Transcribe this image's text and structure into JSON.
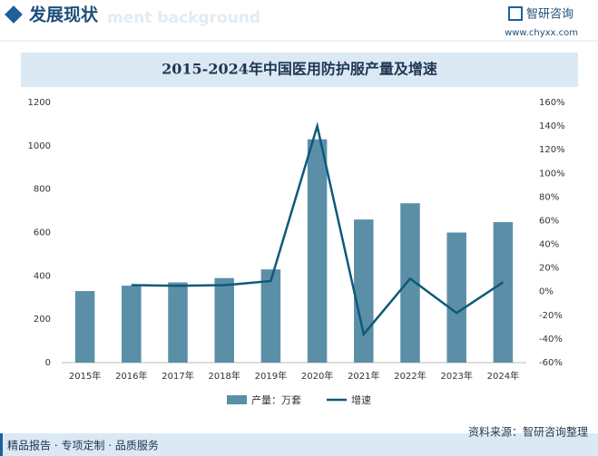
{
  "header": {
    "title": "发展现状",
    "watermark": "ment background",
    "brand": "智研咨询",
    "url": "www.chyxx.com"
  },
  "chart_data": {
    "type": "bar_line",
    "title": "2015-2024年中国医用防护服产量及增速",
    "categories": [
      "2015年",
      "2016年",
      "2017年",
      "2018年",
      "2019年",
      "2020年",
      "2021年",
      "2022年",
      "2023年",
      "2024年"
    ],
    "series": [
      {
        "name": "产量：万套",
        "type": "bar",
        "color": "#5b8fa8",
        "values": [
          330,
          355,
          370,
          390,
          430,
          1030,
          660,
          735,
          600,
          648
        ]
      },
      {
        "name": "增速",
        "type": "line",
        "axis": "y2",
        "color": "#0e5a7a",
        "values": [
          null,
          5.5,
          5,
          5.5,
          9,
          140,
          -36,
          11,
          -18,
          8
        ]
      }
    ],
    "ylim": [
      0,
      1200
    ],
    "yticks": [
      0,
      200,
      400,
      600,
      800,
      1000,
      1200
    ],
    "y2lim": [
      -60,
      160
    ],
    "y2ticks": [
      {
        "value": -60,
        "label": "-60%"
      },
      {
        "value": -40,
        "label": "-40%"
      },
      {
        "value": -20,
        "label": "-20%"
      },
      {
        "value": 0,
        "label": "0%"
      },
      {
        "value": 20,
        "label": "20%"
      },
      {
        "value": 40,
        "label": "40%"
      },
      {
        "value": 60,
        "label": "60%"
      },
      {
        "value": 80,
        "label": "80%"
      },
      {
        "value": 100,
        "label": "100%"
      },
      {
        "value": 120,
        "label": "120%"
      },
      {
        "value": 140,
        "label": "140%"
      },
      {
        "value": 160,
        "label": "160%"
      }
    ],
    "grid": false
  },
  "footer": {
    "slogan": "精品报告 · 专项定制 · 品质服务",
    "source": "资料来源：智研咨询整理"
  }
}
